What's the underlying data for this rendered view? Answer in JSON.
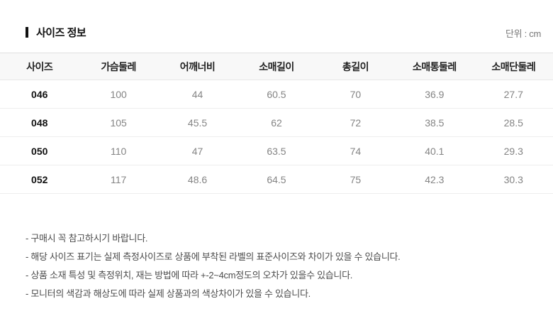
{
  "page": {
    "title": "사이즈 정보",
    "unit_label": "단위 : cm"
  },
  "table": {
    "columns": [
      "사이즈",
      "가슴둘레",
      "어깨너비",
      "소매길이",
      "총길이",
      "소매통둘레",
      "소매단둘레"
    ],
    "rows": [
      {
        "size": "046",
        "values": [
          "100",
          "44",
          "60.5",
          "70",
          "36.9",
          "27.7"
        ]
      },
      {
        "size": "048",
        "values": [
          "105",
          "45.5",
          "62",
          "72",
          "38.5",
          "28.5"
        ]
      },
      {
        "size": "050",
        "values": [
          "110",
          "47",
          "63.5",
          "74",
          "40.1",
          "29.3"
        ]
      },
      {
        "size": "052",
        "values": [
          "117",
          "48.6",
          "64.5",
          "75",
          "42.3",
          "30.3"
        ]
      }
    ]
  },
  "notes": [
    "- 구매시 꼭 참고하시기 바랍니다.",
    "- 해당 사이즈 표기는 실제 측정사이즈로 상품에 부착된 라벨의 표준사이즈와 차이가 있을 수 있습니다.",
    "- 상품 소재 특성 및 측정위치, 재는 방법에 따라 +-2~4cm정도의 오차가 있을수 있습니다.",
    "- 모니터의 색감과 해상도에 따라 실제 상품과의 색상차이가 있을 수 있습니다."
  ],
  "colors": {
    "header_bg": "#f8f8f8",
    "header_border": "#e0e0e0",
    "row_border": "#ededed",
    "header_text": "#222222",
    "size_text": "#111111",
    "data_text": "#848484",
    "unit_text": "#767676",
    "note_text": "#4c4c4c"
  }
}
